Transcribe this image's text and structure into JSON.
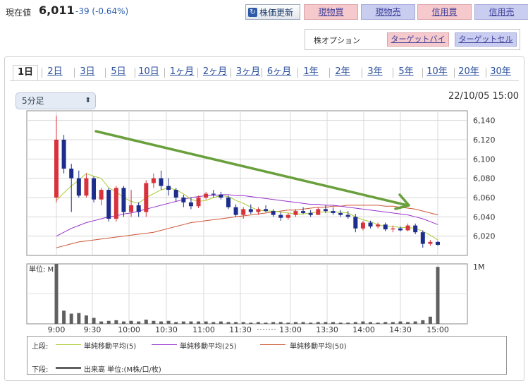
{
  "header": {
    "price_label": "現在値",
    "price_value": "6,011",
    "price_change": "-39 (-0.64%)",
    "refresh_label": "株価更新",
    "buttons": [
      {
        "label": "現物買",
        "type": "buy"
      },
      {
        "label": "現物売",
        "type": "sell"
      },
      {
        "label": "信用買",
        "type": "buy"
      },
      {
        "label": "信用売",
        "type": "sell"
      }
    ]
  },
  "options": {
    "label": "株オプション",
    "target_buy": "ターゲットバイ",
    "target_sell": "ターゲットセル"
  },
  "tabs": [
    "1日",
    "2日",
    "3日",
    "5日",
    "10日",
    "1ヶ月",
    "2ヶ月",
    "3ヶ月",
    "6ヶ月",
    "1年",
    "2年",
    "3年",
    "5年",
    "10年",
    "20年",
    "30年"
  ],
  "active_tab": "1日",
  "interval_select": "5分足",
  "datetime": "22/10/05 15:00",
  "colors": {
    "up": "#d8323c",
    "down": "#1c2d8c",
    "ma5": "#aacc33",
    "ma25": "#9933cc",
    "ma50": "#cc5533",
    "arrow": "#6aa03c",
    "volume": "#606060"
  },
  "chart_data": {
    "type": "candlestick",
    "price_axis": {
      "ticks": [
        "6,140",
        "6,120",
        "6,100",
        "6,080",
        "6,060",
        "6,040",
        "6,020"
      ],
      "range": [
        6000,
        6150
      ]
    },
    "volume_axis": {
      "label": "単位: M",
      "max_tick": "1M"
    },
    "x_ticks": [
      "9:00",
      "9:30",
      "10:00",
      "10:30",
      "11:00",
      "11:30",
      "13:00",
      "13:30",
      "14:00",
      "14:30",
      "15:00"
    ],
    "candles": [
      [
        6060,
        6145,
        6055,
        6120
      ],
      [
        6120,
        6125,
        6085,
        6090
      ],
      [
        6090,
        6095,
        6045,
        6080
      ],
      [
        6080,
        6088,
        6060,
        6062
      ],
      [
        6062,
        6085,
        6060,
        6080
      ],
      [
        6080,
        6082,
        6055,
        6058
      ],
      [
        6058,
        6070,
        6052,
        6068
      ],
      [
        6068,
        6070,
        6035,
        6038
      ],
      [
        6038,
        6072,
        6035,
        6070
      ],
      [
        6070,
        6072,
        6040,
        6045
      ],
      [
        6045,
        6068,
        6040,
        6052
      ],
      [
        6052,
        6055,
        6040,
        6045
      ],
      [
        6045,
        6078,
        6040,
        6075
      ],
      [
        6075,
        6085,
        6070,
        6080
      ],
      [
        6080,
        6088,
        6068,
        6072
      ],
      [
        6072,
        6080,
        6062,
        6068
      ],
      [
        6068,
        6070,
        6056,
        6060
      ],
      [
        6060,
        6063,
        6050,
        6055
      ],
      [
        6055,
        6060,
        6048,
        6051
      ],
      [
        6051,
        6062,
        6049,
        6060
      ],
      [
        6060,
        6066,
        6058,
        6064
      ],
      [
        6064,
        6068,
        6060,
        6063
      ],
      [
        6063,
        6066,
        6058,
        6060
      ],
      [
        6060,
        6062,
        6048,
        6050
      ],
      [
        6050,
        6053,
        6040,
        6042
      ],
      [
        6042,
        6050,
        6038,
        6048
      ],
      [
        6048,
        6053,
        6043,
        6045
      ],
      [
        6045,
        6050,
        6042,
        6048
      ],
      [
        6048,
        6052,
        6045,
        6046
      ],
      [
        6046,
        6048,
        6040,
        6042
      ],
      [
        6042,
        6045,
        6036,
        6039
      ],
      [
        6039,
        6044,
        6037,
        6042
      ],
      [
        6042,
        6048,
        6040,
        6046
      ],
      [
        6046,
        6050,
        6043,
        6044
      ],
      [
        6044,
        6047,
        6040,
        6042
      ],
      [
        6042,
        6050,
        6042,
        6048
      ],
      [
        6048,
        6052,
        6044,
        6046
      ],
      [
        6046,
        6050,
        6042,
        6044
      ],
      [
        6044,
        6047,
        6040,
        6042
      ],
      [
        6042,
        6046,
        6038,
        6040
      ],
      [
        6040,
        6043,
        6024,
        6028
      ],
      [
        6028,
        6036,
        6026,
        6034
      ],
      [
        6034,
        6036,
        6028,
        6030
      ],
      [
        6030,
        6034,
        6028,
        6032
      ],
      [
        6032,
        6034,
        6025,
        6027
      ],
      [
        6027,
        6031,
        6024,
        6028
      ],
      [
        6028,
        6030,
        6025,
        6026
      ],
      [
        6026,
        6033,
        6025,
        6031
      ],
      [
        6031,
        6033,
        6022,
        6024
      ],
      [
        6024,
        6026,
        6008,
        6012
      ],
      [
        6012,
        6016,
        6010,
        6014
      ],
      [
        6014,
        6015,
        6010,
        6011
      ]
    ],
    "ma5": [
      6057,
      6065,
      6072,
      6078,
      6085,
      6082,
      6080,
      6070,
      6066,
      6060,
      6056,
      6054,
      6060,
      6064,
      6068,
      6070,
      6068,
      6064,
      6058,
      6056,
      6057,
      6060,
      6062,
      6061,
      6057,
      6054,
      6050,
      6047,
      6046,
      6046,
      6045,
      6044,
      6043,
      6043,
      6044,
      6045,
      6045,
      6045,
      6045,
      6044,
      6040,
      6037,
      6035,
      6032,
      6030,
      6030,
      6029,
      6029,
      6028,
      6025,
      6021,
      6016
    ],
    "ma25": [
      6020,
      6024,
      6028,
      6031,
      6034,
      6036,
      6038,
      6040,
      6041,
      6043,
      6044,
      6046,
      6048,
      6050,
      6052,
      6054,
      6056,
      6058,
      6060,
      6061,
      6062,
      6062,
      6063,
      6063,
      6062,
      6062,
      6061,
      6060,
      6059,
      6058,
      6057,
      6056,
      6055,
      6054,
      6053,
      6053,
      6052,
      6052,
      6051,
      6050,
      6049,
      6048,
      6047,
      6046,
      6045,
      6044,
      6043,
      6042,
      6040,
      6038,
      6035,
      6032
    ],
    "ma50": [
      6008,
      6010,
      6012,
      6014,
      6015,
      6016,
      6017,
      6018,
      6019,
      6020,
      6021,
      6022,
      6023,
      6024,
      6026,
      6028,
      6030,
      6032,
      6034,
      6035,
      6036,
      6037,
      6038,
      6039,
      6040,
      6041,
      6042,
      6043,
      6044,
      6045,
      6046,
      6047,
      6047,
      6048,
      6049,
      6050,
      6050,
      6051,
      6051,
      6052,
      6052,
      6052,
      6052,
      6052,
      6051,
      6051,
      6050,
      6049,
      6048,
      6046,
      6044,
      6042
    ],
    "volume": [
      1.0,
      0.22,
      0.17,
      0.18,
      0.14,
      0.1,
      0.04,
      0.05,
      0.06,
      0.04,
      0.05,
      0.04,
      0.07,
      0.05,
      0.04,
      0.05,
      0.03,
      0.04,
      0.04,
      0.04,
      0.04,
      0.03,
      0.04,
      0.03,
      0.03,
      0.03,
      0.02,
      0.03,
      0.02,
      0.03,
      0.03,
      0.02,
      0.03,
      0.03,
      0.02,
      0.03,
      0.03,
      0.03,
      0.02,
      0.02,
      0.03,
      0.04,
      0.03,
      0.02,
      0.03,
      0.03,
      0.04,
      0.03,
      0.04,
      0.06,
      0.12,
      0.95
    ]
  },
  "legend": {
    "upper_label": "上段:",
    "ma5_label": "単純移動平均(5)",
    "ma25_label": "単純移動平均(25)",
    "ma50_label": "単純移動平均(50)",
    "lower_label": "下段:",
    "volume_label": "出来高 単位:(M株/口/枚)"
  }
}
